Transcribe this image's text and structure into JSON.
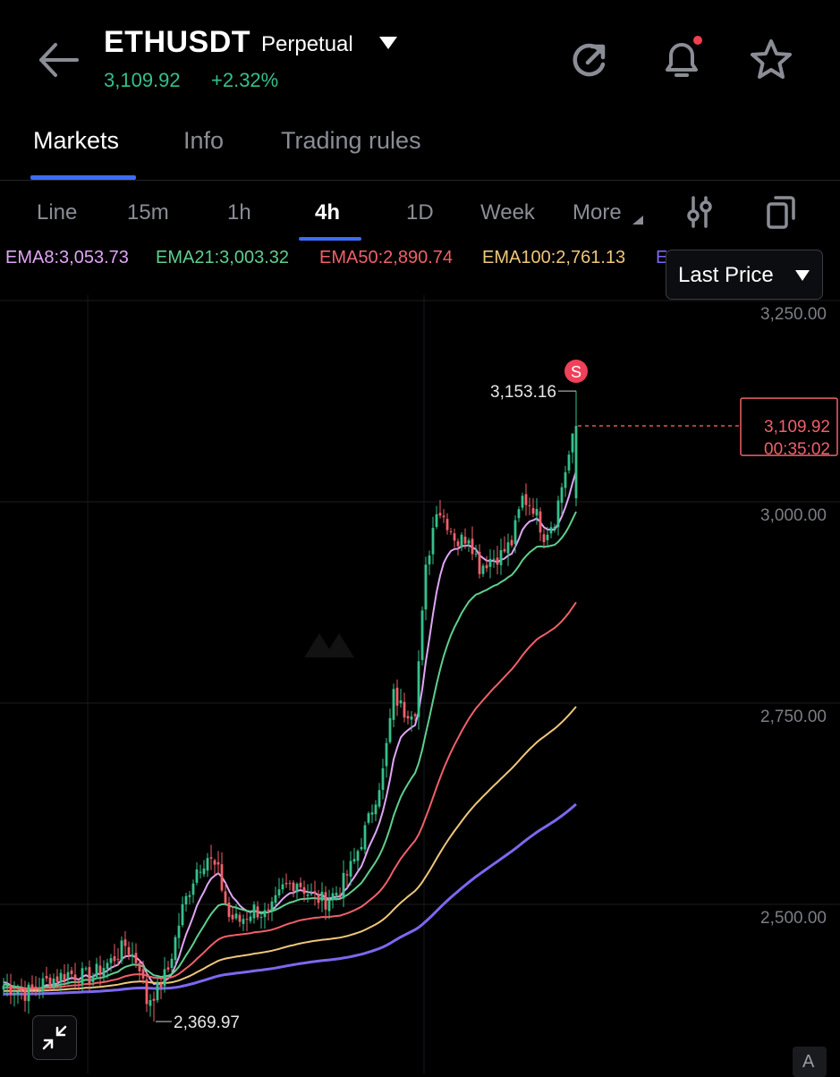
{
  "header": {
    "symbol": "ETHUSDT",
    "contract_type": "Perpetual",
    "last_price": "3,109.92",
    "change_pct": "+2.32%"
  },
  "tabs": [
    {
      "label": "Markets",
      "active": true
    },
    {
      "label": "Info",
      "active": false
    },
    {
      "label": "Trading rules",
      "active": false
    }
  ],
  "timeframes": [
    {
      "label": "Line",
      "active": false
    },
    {
      "label": "15m",
      "active": false
    },
    {
      "label": "1h",
      "active": false
    },
    {
      "label": "4h",
      "active": true
    },
    {
      "label": "1D",
      "active": false
    },
    {
      "label": "Week",
      "active": false
    },
    {
      "label": "More",
      "active": false
    }
  ],
  "ema_legend": [
    {
      "label": "EMA8:3,053.73",
      "color": "#e0a6f4"
    },
    {
      "label": "EMA21:3,003.32",
      "color": "#5fcf8e"
    },
    {
      "label": "EMA50:2,890.74",
      "color": "#f0606a"
    },
    {
      "label": "EMA100:2,761.13",
      "color": "#f0c77a"
    },
    {
      "label": "E",
      "color": "#7c68f0"
    }
  ],
  "price_type_selector": "Last Price",
  "icons": {
    "back": "arrow-left-icon",
    "contract_dropdown": "caret-down-icon",
    "refresh": "refresh-icon",
    "alerts": "bell-icon",
    "favorite": "star-icon",
    "indicators": "sliders-icon",
    "copy": "copy-icon",
    "collapse": "collapse-arrows-icon"
  },
  "colors": {
    "up": "#35c08a",
    "down": "#f0606a",
    "accent": "#3d6cf4",
    "background": "#000000"
  },
  "chart_data": {
    "type": "candlestick",
    "timeframe": "4h",
    "ylim": [
      2330,
      3300
    ],
    "y_ticks": [
      {
        "value": 3250,
        "label": "3,250.00"
      },
      {
        "value": 3000,
        "label": "3,000.00"
      },
      {
        "value": 2750,
        "label": "2,750.00"
      },
      {
        "value": 2500,
        "label": "2,500.00"
      }
    ],
    "high_marker": {
      "value": 3153.16,
      "label": "3,153.16"
    },
    "low_marker": {
      "value": 2369.97,
      "label": "2,369.97"
    },
    "current_price": {
      "value": 3109.92,
      "label": "3,109.92",
      "countdown": "00:35:02"
    },
    "signal_marker": {
      "label": "S"
    },
    "anchors": [
      [
        0,
        2415
      ],
      [
        6,
        2405
      ],
      [
        12,
        2420
      ],
      [
        18,
        2430
      ],
      [
        24,
        2425
      ],
      [
        30,
        2445
      ],
      [
        34,
        2465
      ],
      [
        38,
        2440
      ],
      [
        40,
        2395
      ],
      [
        43,
        2410
      ],
      [
        46,
        2435
      ],
      [
        50,
        2510
      ],
      [
        54,
        2560
      ],
      [
        57,
        2575
      ],
      [
        60,
        2555
      ],
      [
        63,
        2500
      ],
      [
        66,
        2495
      ],
      [
        70,
        2510
      ],
      [
        74,
        2500
      ],
      [
        78,
        2535
      ],
      [
        82,
        2545
      ],
      [
        86,
        2525
      ],
      [
        90,
        2520
      ],
      [
        94,
        2535
      ],
      [
        98,
        2570
      ],
      [
        102,
        2620
      ],
      [
        106,
        2680
      ],
      [
        109,
        2775
      ],
      [
        112,
        2755
      ],
      [
        115,
        2760
      ],
      [
        118,
        2930
      ],
      [
        121,
        3010
      ],
      [
        124,
        2990
      ],
      [
        127,
        2965
      ],
      [
        130,
        2975
      ],
      [
        133,
        2935
      ],
      [
        136,
        2945
      ],
      [
        139,
        2950
      ],
      [
        142,
        2965
      ],
      [
        145,
        3020
      ],
      [
        148,
        3010
      ],
      [
        151,
        2975
      ],
      [
        154,
        2995
      ],
      [
        157,
        3055
      ],
      [
        160,
        3109.92
      ]
    ],
    "ema_series": [
      {
        "name": "EMA8",
        "value": 3053.73,
        "color": "#e0a6f4"
      },
      {
        "name": "EMA21",
        "value": 3003.32,
        "color": "#5fcf8e"
      },
      {
        "name": "EMA50",
        "value": 2890.74,
        "color": "#f0606a"
      },
      {
        "name": "EMA100",
        "value": 2761.13,
        "color": "#f0c77a"
      },
      {
        "name": "E",
        "value": 2640,
        "color": "#7c68f0"
      }
    ]
  }
}
